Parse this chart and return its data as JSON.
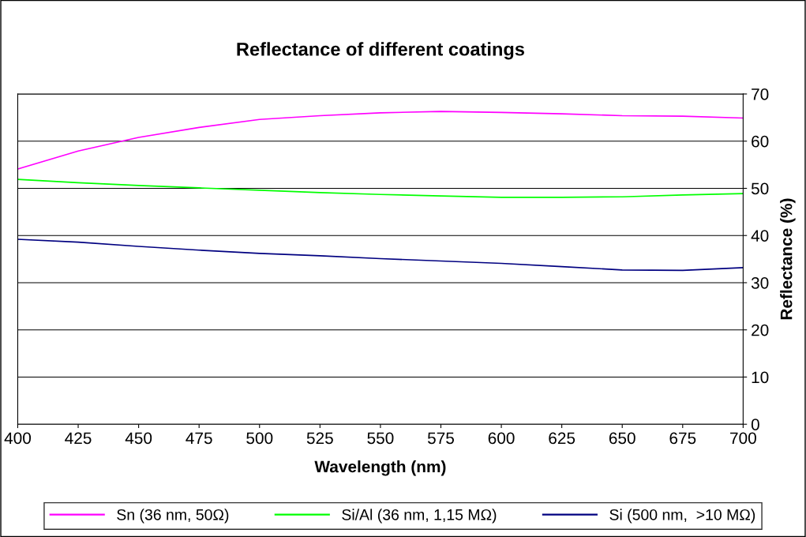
{
  "chart_data": {
    "type": "line",
    "title": "Reflectance of different coatings",
    "xlabel": "Wavelength (nm)",
    "ylabel": "Reflectance (%)",
    "x": [
      400,
      425,
      450,
      475,
      500,
      525,
      550,
      575,
      600,
      625,
      650,
      675,
      700
    ],
    "series": [
      {
        "name": "Sn (36 nm, 50Ω)",
        "color": "#ff00ff",
        "values": [
          54.1,
          57.9,
          60.8,
          62.9,
          64.6,
          65.4,
          66.0,
          66.3,
          66.1,
          65.8,
          65.4,
          65.3,
          64.9
        ]
      },
      {
        "name": "Si/Al (36 nm, 1,15 MΩ)",
        "color": "#00ff00",
        "values": [
          51.9,
          51.2,
          50.6,
          50.1,
          49.6,
          49.1,
          48.7,
          48.4,
          48.1,
          48.1,
          48.2,
          48.6,
          48.9
        ]
      },
      {
        "name": "Si (500 nm,  >10 MΩ)",
        "color": "#000080",
        "values": [
          39.2,
          38.6,
          37.7,
          36.9,
          36.2,
          35.7,
          35.1,
          34.6,
          34.1,
          33.4,
          32.7,
          32.6,
          33.2
        ]
      }
    ],
    "xlim": [
      400,
      700
    ],
    "xticks": [
      400,
      425,
      450,
      475,
      500,
      525,
      550,
      575,
      600,
      625,
      650,
      675,
      700
    ],
    "ylim": [
      0,
      70
    ],
    "yticks": [
      0,
      10,
      20,
      30,
      40,
      50,
      60,
      70
    ],
    "grid": "y",
    "legend": "bottom",
    "marker": "none",
    "line_style": "solid"
  }
}
